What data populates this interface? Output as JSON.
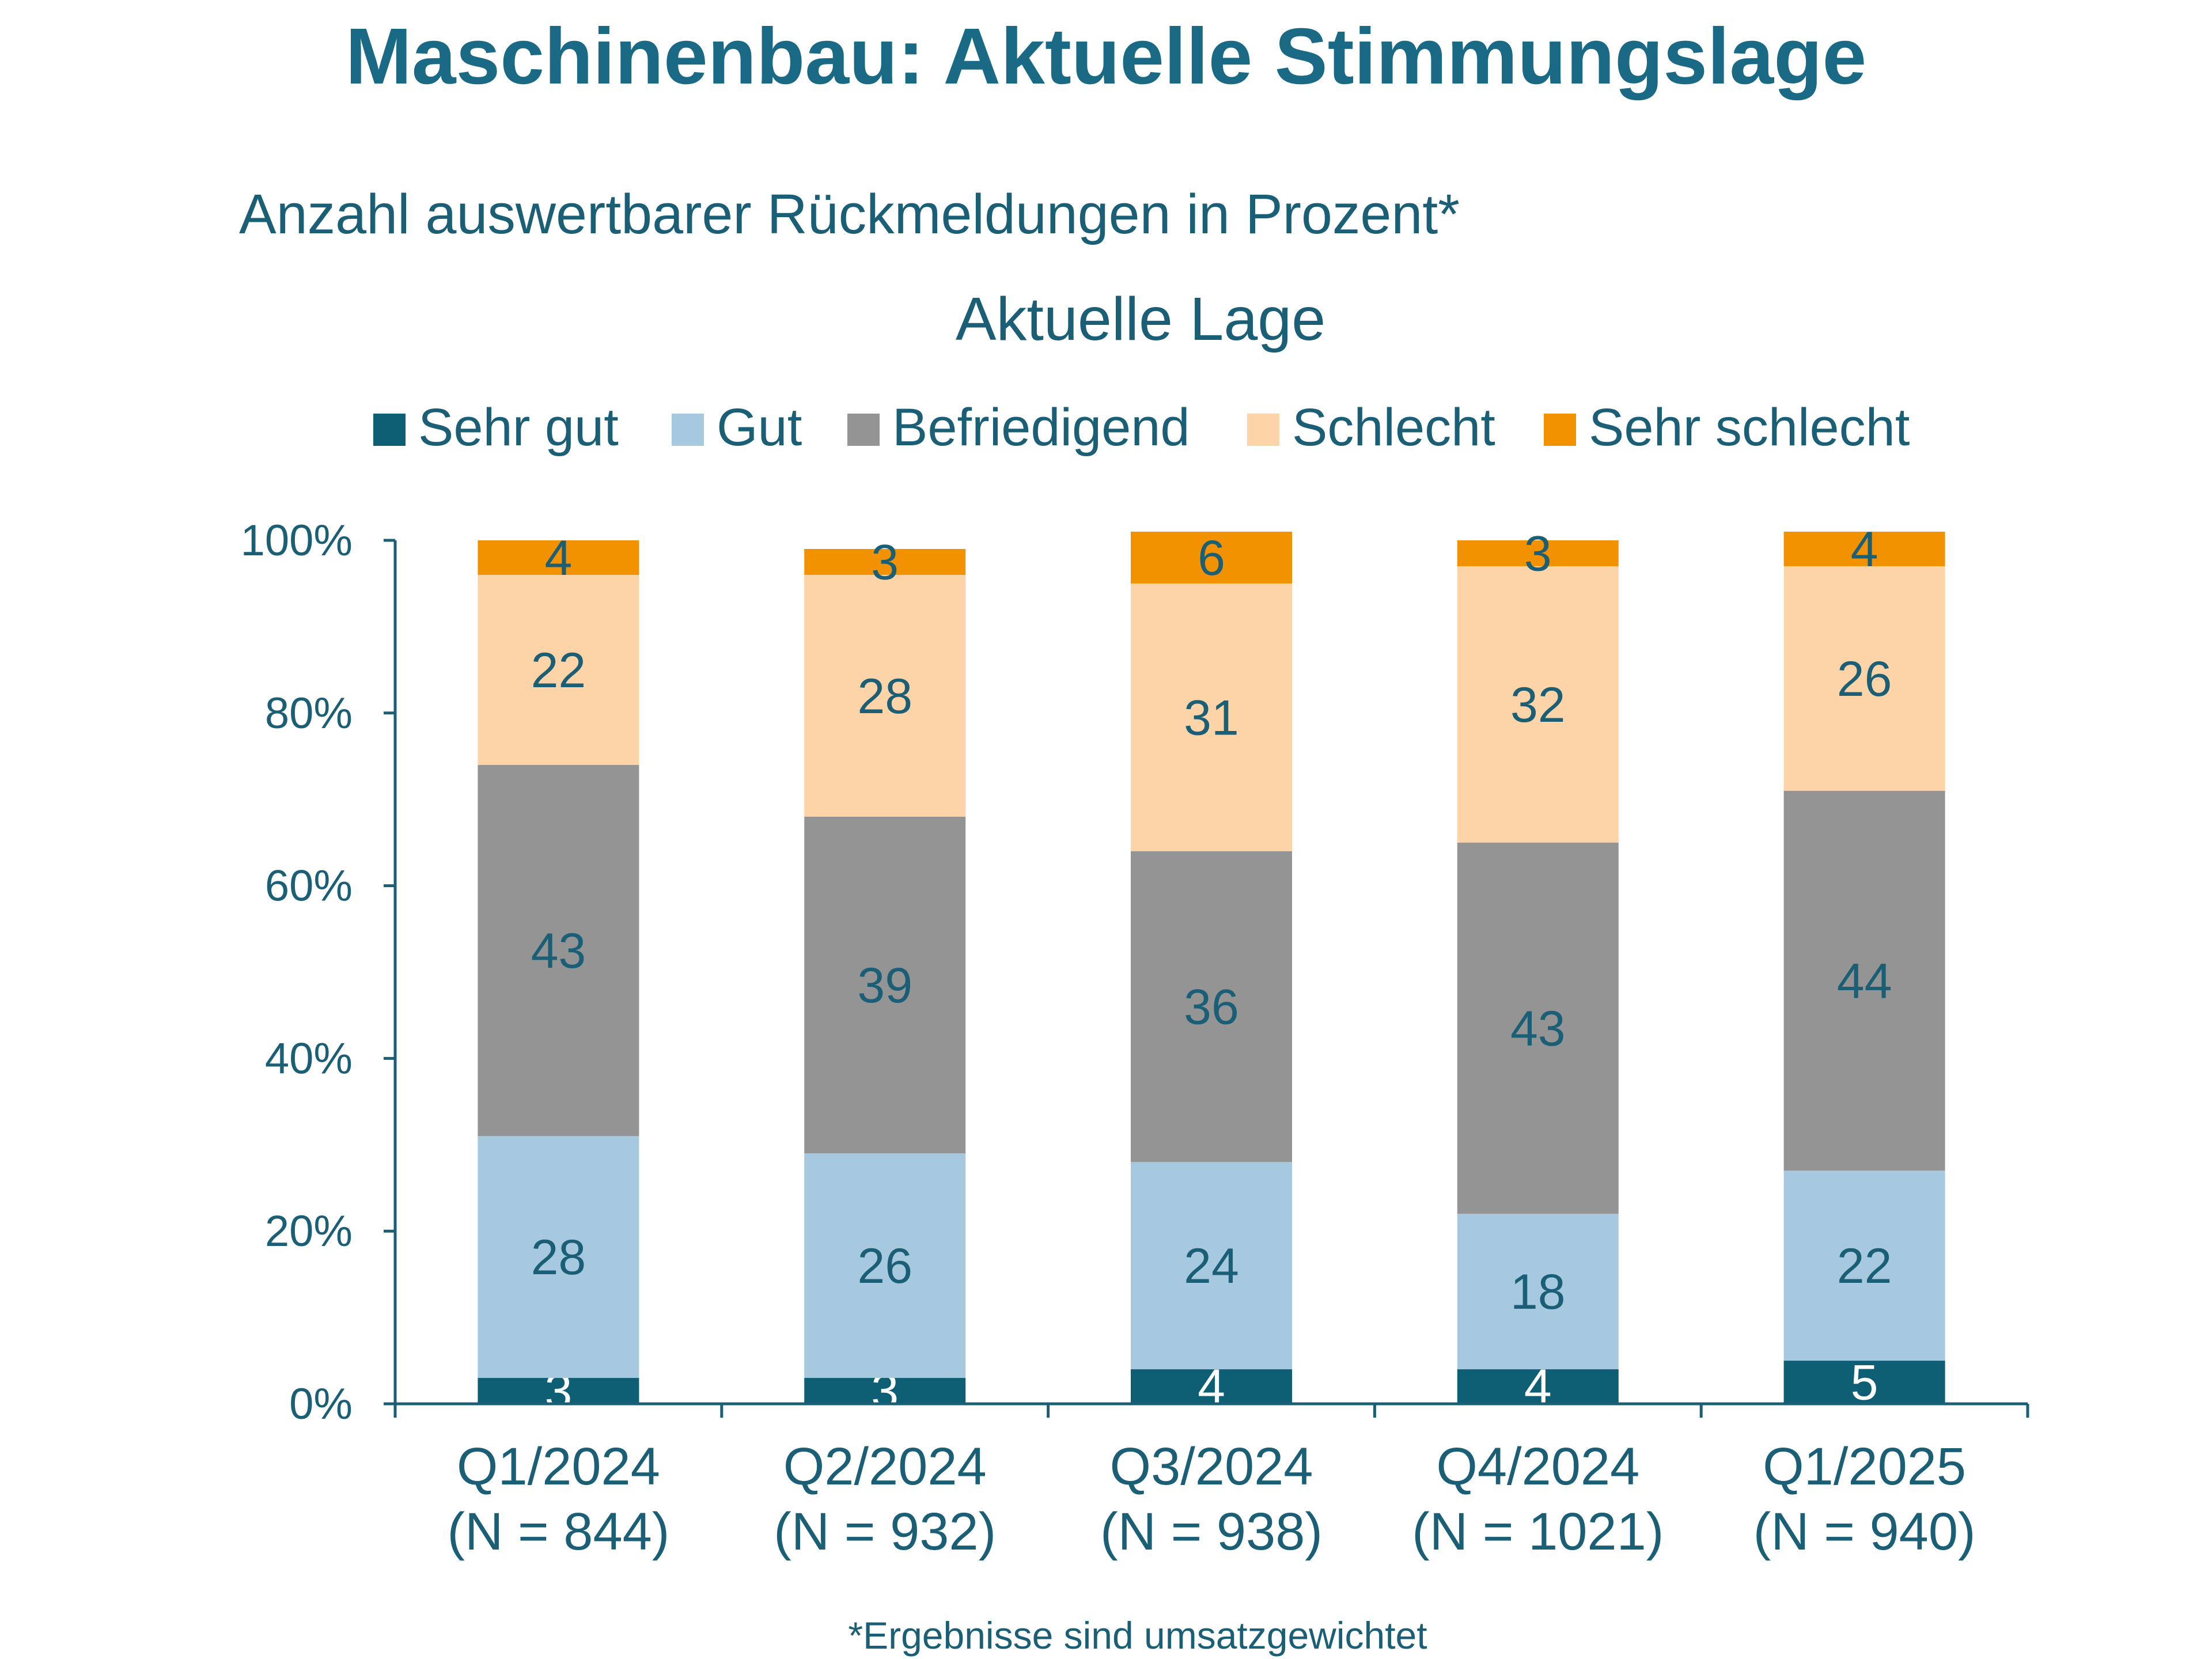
{
  "page": {
    "title": "Maschinenbau: Aktuelle Stimmungslage",
    "subtitle": "Anzahl auswertbarer Rückmeldungen in Prozent*",
    "footnote": "*Ergebnisse sind umsatzgewichtet"
  },
  "chart_data": {
    "type": "bar",
    "stacked": true,
    "title": "Aktuelle Lage",
    "categories": [
      [
        "Q1/2024",
        "(N = 844)"
      ],
      [
        "Q2/2024",
        "(N = 932)"
      ],
      [
        "Q3/2024",
        "(N = 938)"
      ],
      [
        "Q4/2024",
        "(N = 1021)"
      ],
      [
        "Q1/2025",
        "(N = 940)"
      ]
    ],
    "series": [
      {
        "name": "Sehr gut",
        "color": "#0e5f74",
        "label_color": "#ffffff",
        "values": [
          3,
          3,
          4,
          4,
          5
        ]
      },
      {
        "name": "Gut",
        "color": "#a6c9df",
        "label_color": "#1a5f75",
        "values": [
          28,
          26,
          24,
          18,
          22
        ]
      },
      {
        "name": "Befriedigend",
        "color": "#949494",
        "label_color": "#1a5f75",
        "values": [
          43,
          39,
          36,
          43,
          44
        ]
      },
      {
        "name": "Schlecht",
        "color": "#fdd3a8",
        "label_color": "#1a5f75",
        "values": [
          22,
          28,
          31,
          32,
          26
        ]
      },
      {
        "name": "Sehr schlecht",
        "color": "#f39200",
        "label_color": "#1a5f75",
        "values": [
          4,
          3,
          6,
          3,
          4
        ]
      }
    ],
    "ylim": [
      0,
      100
    ],
    "yticks": [
      "0%",
      "20%",
      "40%",
      "60%",
      "80%",
      "100%"
    ],
    "legend_position": "top",
    "grid": false,
    "colors": {
      "title": "#1a6a85",
      "text": "#1a5f75",
      "axis": "#1a5f75"
    }
  }
}
